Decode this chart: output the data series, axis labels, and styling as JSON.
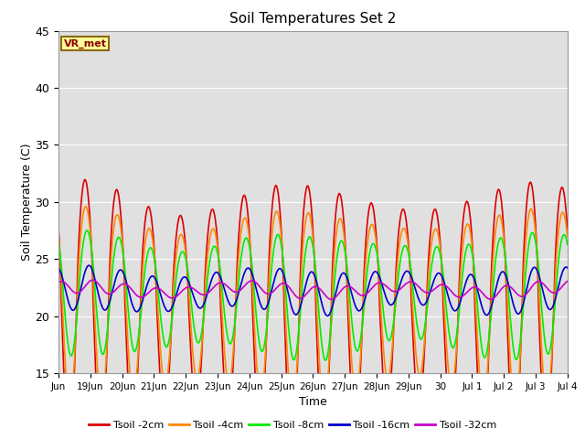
{
  "title": "Soil Temperatures Set 2",
  "xlabel": "Time",
  "ylabel": "Soil Temperature (C)",
  "ylim": [
    15,
    45
  ],
  "bg_color": "#e0e0e0",
  "fig_bg": "#ffffff",
  "annotation": "VR_met",
  "series": [
    {
      "label": "Tsoil -2cm",
      "color": "#dd0000",
      "lw": 1.2,
      "mean": 21.5,
      "amp": 11.5,
      "phase_hr": 14.0,
      "depth_lag": 0.0
    },
    {
      "label": "Tsoil -4cm",
      "color": "#ff8800",
      "lw": 1.2,
      "mean": 21.8,
      "amp": 8.5,
      "phase_hr": 14.5,
      "depth_lag": 1.0
    },
    {
      "label": "Tsoil -8cm",
      "color": "#00ee00",
      "lw": 1.2,
      "mean": 22.0,
      "amp": 5.0,
      "phase_hr": 15.5,
      "depth_lag": 2.5
    },
    {
      "label": "Tsoil -16cm",
      "color": "#0000cc",
      "lw": 1.2,
      "mean": 22.2,
      "amp": 1.7,
      "phase_hr": 17.0,
      "depth_lag": 5.0
    },
    {
      "label": "Tsoil -32cm",
      "color": "#cc00cc",
      "lw": 1.2,
      "mean": 22.3,
      "amp": 0.5,
      "phase_hr": 20.0,
      "depth_lag": 10.0
    }
  ],
  "tick_labels": [
    "Jun",
    "19Jun",
    "20Jun",
    "21Jun",
    "22Jun",
    "23Jun",
    "24Jun",
    "25Jun",
    "26Jun",
    "27Jun",
    "28Jun",
    "29Jun",
    "30",
    "Jul 1",
    "Jul 2",
    "Jul 3",
    "Jul 4"
  ],
  "yticks": [
    15,
    20,
    25,
    30,
    35,
    40,
    45
  ],
  "n_days": 16,
  "start_day": 18
}
